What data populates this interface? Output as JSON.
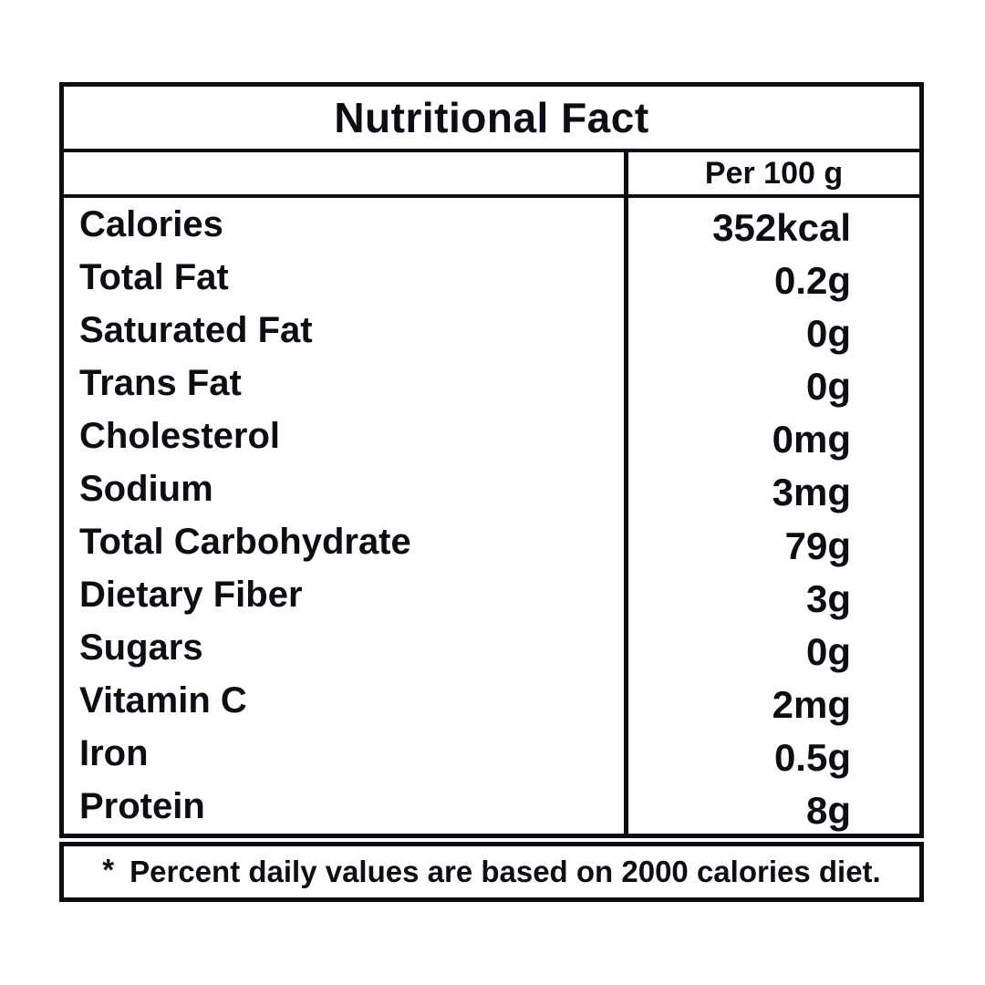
{
  "colors": {
    "ink": "#0c0e13",
    "background": "#ffffff"
  },
  "label": {
    "title": "Nutritional Fact",
    "column_header": "Per 100 g",
    "rows": [
      {
        "name": "Calories",
        "value": "352kcal"
      },
      {
        "name": "Total Fat",
        "value": "0.2g"
      },
      {
        "name": "Saturated Fat",
        "value": "0g"
      },
      {
        "name": "Trans Fat",
        "value": "0g"
      },
      {
        "name": "Cholesterol",
        "value": "0mg"
      },
      {
        "name": "Sodium",
        "value": "3mg"
      },
      {
        "name": "Total Carbohydrate",
        "value": "79g"
      },
      {
        "name": "Dietary Fiber",
        "value": "3g"
      },
      {
        "name": "Sugars",
        "value": "0g"
      },
      {
        "name": "Vitamin C",
        "value": "2mg"
      },
      {
        "name": "Iron",
        "value": "0.5g"
      },
      {
        "name": "Protein",
        "value": "8g"
      }
    ],
    "footnote": {
      "marker": "*",
      "text": "Percent daily values are based on 2000 calories diet."
    }
  }
}
